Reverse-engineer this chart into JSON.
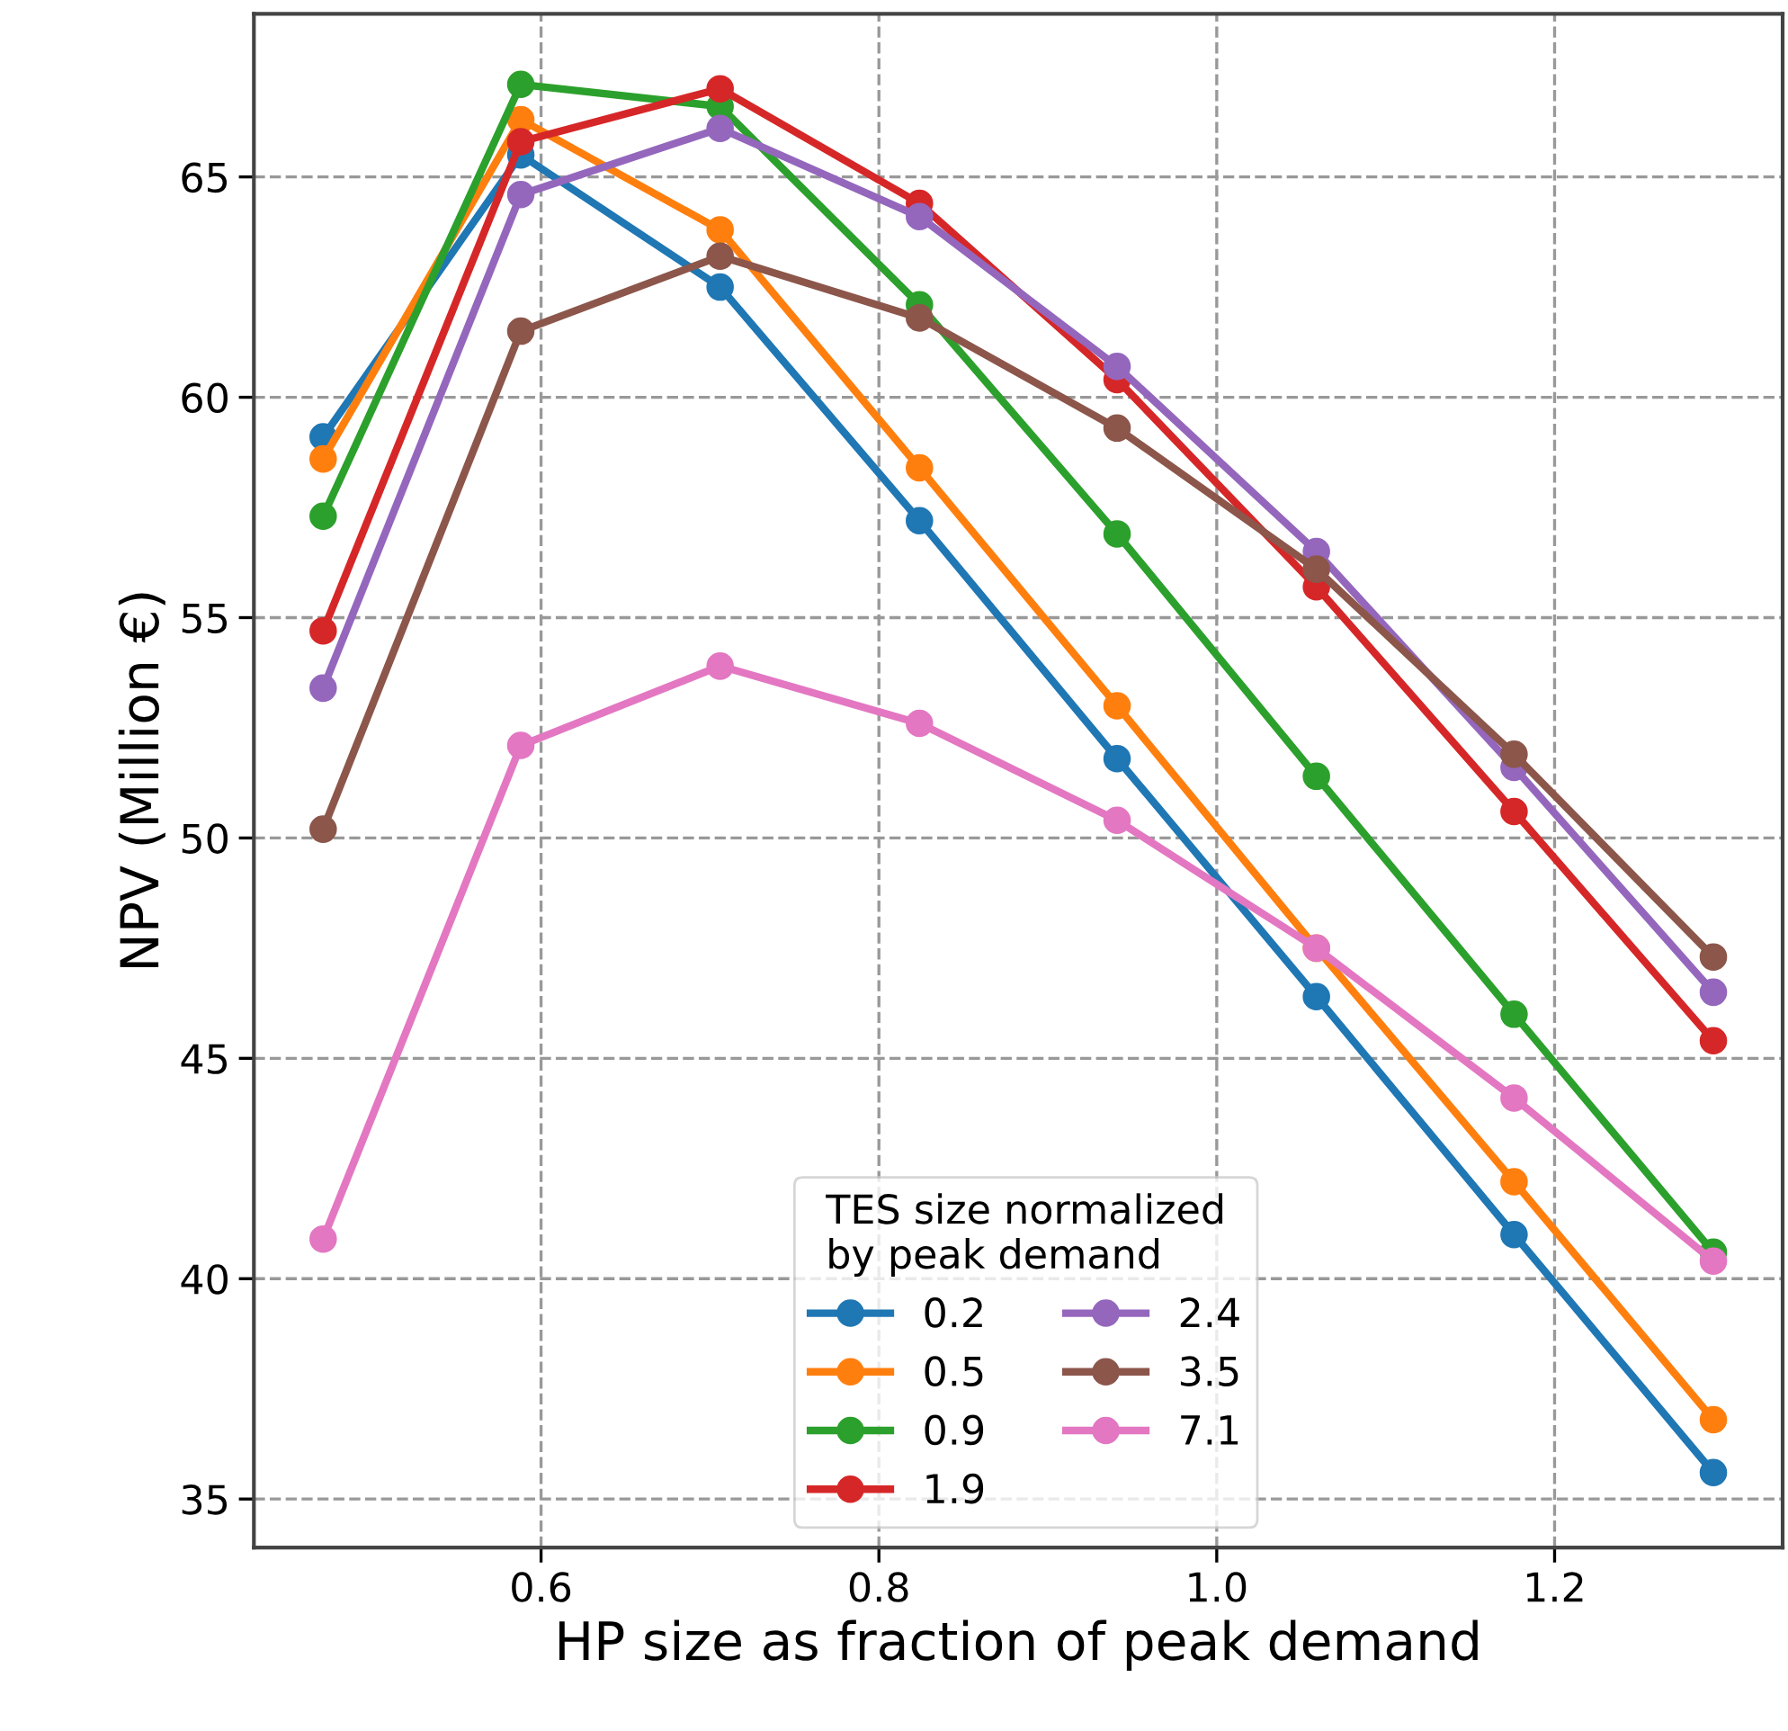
{
  "chart_data": {
    "type": "line",
    "xlabel": "HP size as fraction of peak demand",
    "ylabel": "NPV (Million €)",
    "legend_title": "TES size normalized\nby peak demand",
    "x": [
      0.471,
      0.588,
      0.706,
      0.824,
      0.941,
      1.059,
      1.176,
      1.294
    ],
    "series": [
      {
        "name": "0.2",
        "color": "#1f77b4",
        "values": [
          59.1,
          65.5,
          62.5,
          57.2,
          51.8,
          46.4,
          41.0,
          35.6
        ]
      },
      {
        "name": "0.5",
        "color": "#ff7f0e",
        "values": [
          58.6,
          66.3,
          63.8,
          58.4,
          53.0,
          47.5,
          42.2,
          36.8
        ]
      },
      {
        "name": "0.9",
        "color": "#2ca02c",
        "values": [
          57.3,
          67.1,
          66.6,
          62.1,
          56.9,
          51.4,
          46.0,
          40.6
        ]
      },
      {
        "name": "1.9",
        "color": "#d62728",
        "values": [
          54.7,
          65.8,
          67.0,
          64.4,
          60.4,
          55.7,
          50.6,
          45.4
        ]
      },
      {
        "name": "2.4",
        "color": "#9467bd",
        "values": [
          53.4,
          64.6,
          66.1,
          64.1,
          60.7,
          56.5,
          51.6,
          46.5
        ]
      },
      {
        "name": "3.5",
        "color": "#8c564b",
        "values": [
          50.2,
          61.5,
          63.2,
          61.8,
          59.3,
          56.1,
          51.9,
          47.3
        ]
      },
      {
        "name": "7.1",
        "color": "#e377c2",
        "values": [
          40.9,
          52.1,
          53.9,
          52.6,
          50.4,
          47.5,
          44.1,
          40.4
        ]
      }
    ],
    "xlim": [
      0.43,
      1.335
    ],
    "xticks": [
      {
        "value": 0.6,
        "label": "0.6"
      },
      {
        "value": 0.8,
        "label": "0.8"
      },
      {
        "value": 1.0,
        "label": "1.0"
      },
      {
        "value": 1.2,
        "label": "1.2"
      }
    ],
    "ylim": [
      33.9,
      68.7
    ],
    "yticks": [
      35,
      40,
      45,
      50,
      55,
      60,
      65
    ],
    "grid": true,
    "legend": "bottom",
    "marker": "circle",
    "line_style": "solid"
  }
}
